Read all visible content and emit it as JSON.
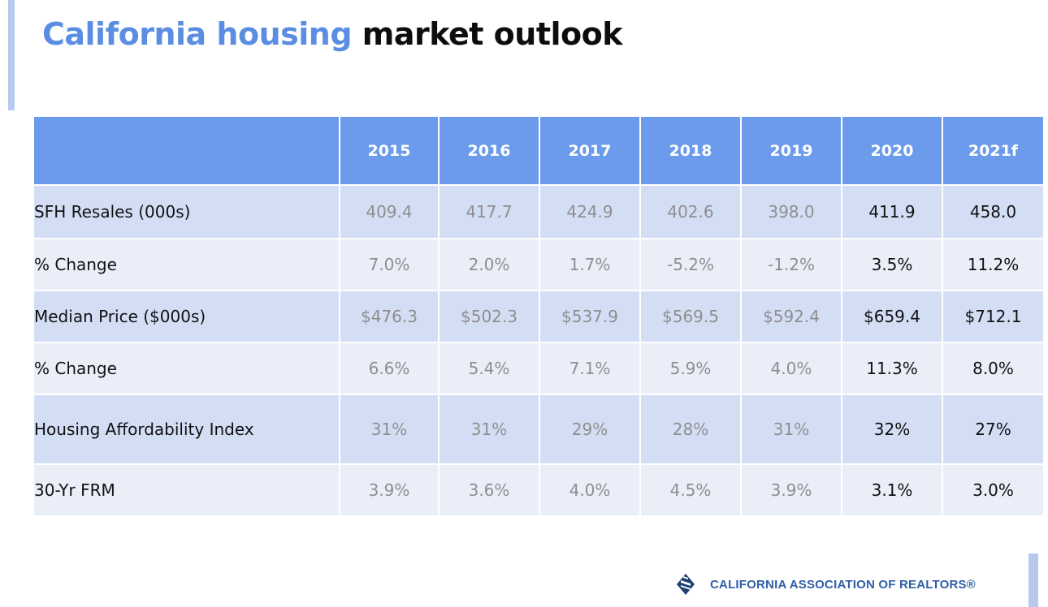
{
  "slide": {
    "title_highlight": "California housing",
    "title_rest": "market outlook"
  },
  "table": {
    "columns": [
      "",
      "2015",
      "2016",
      "2017",
      "2018",
      "2019",
      "2020",
      "2021f"
    ],
    "rows": [
      {
        "label": "SFH Resales (000s)",
        "values": [
          "409.4",
          "417.7",
          "424.9",
          "402.6",
          "398.0",
          "411.9",
          "458.0"
        ]
      },
      {
        "label": "% Change",
        "values": [
          "7.0%",
          "2.0%",
          "1.7%",
          "-5.2%",
          "-1.2%",
          "3.5%",
          "11.2%"
        ]
      },
      {
        "label": "Median Price ($000s)",
        "values": [
          "$476.3",
          "$502.3",
          "$537.9",
          "$569.5",
          "$592.4",
          "$659.4",
          "$712.1"
        ]
      },
      {
        "label": "% Change",
        "values": [
          "6.6%",
          "5.4%",
          "7.1%",
          "5.9%",
          "4.0%",
          "11.3%",
          "8.0%"
        ]
      },
      {
        "label": "Housing Affordability Index",
        "values": [
          "31%",
          "31%",
          "29%",
          "28%",
          "31%",
          "32%",
          "27%"
        ]
      },
      {
        "label": "30-Yr FRM",
        "values": [
          "3.9%",
          "3.6%",
          "4.0%",
          "4.5%",
          "3.9%",
          "3.1%",
          "3.0%"
        ]
      }
    ]
  },
  "footer": {
    "organization": "CALIFORNIA ASSOCIATION OF REALTORS®",
    "logo_icon": "car-logo-icon"
  },
  "colors": {
    "accent_blue": "#5b8ee2",
    "header_fill": "#6b9bea",
    "row_dark": "#d3def5",
    "row_light": "#e9eef9",
    "historical_text": "#8e8e8e",
    "current_text": "#111111",
    "footer_text": "#2f5fa6"
  }
}
